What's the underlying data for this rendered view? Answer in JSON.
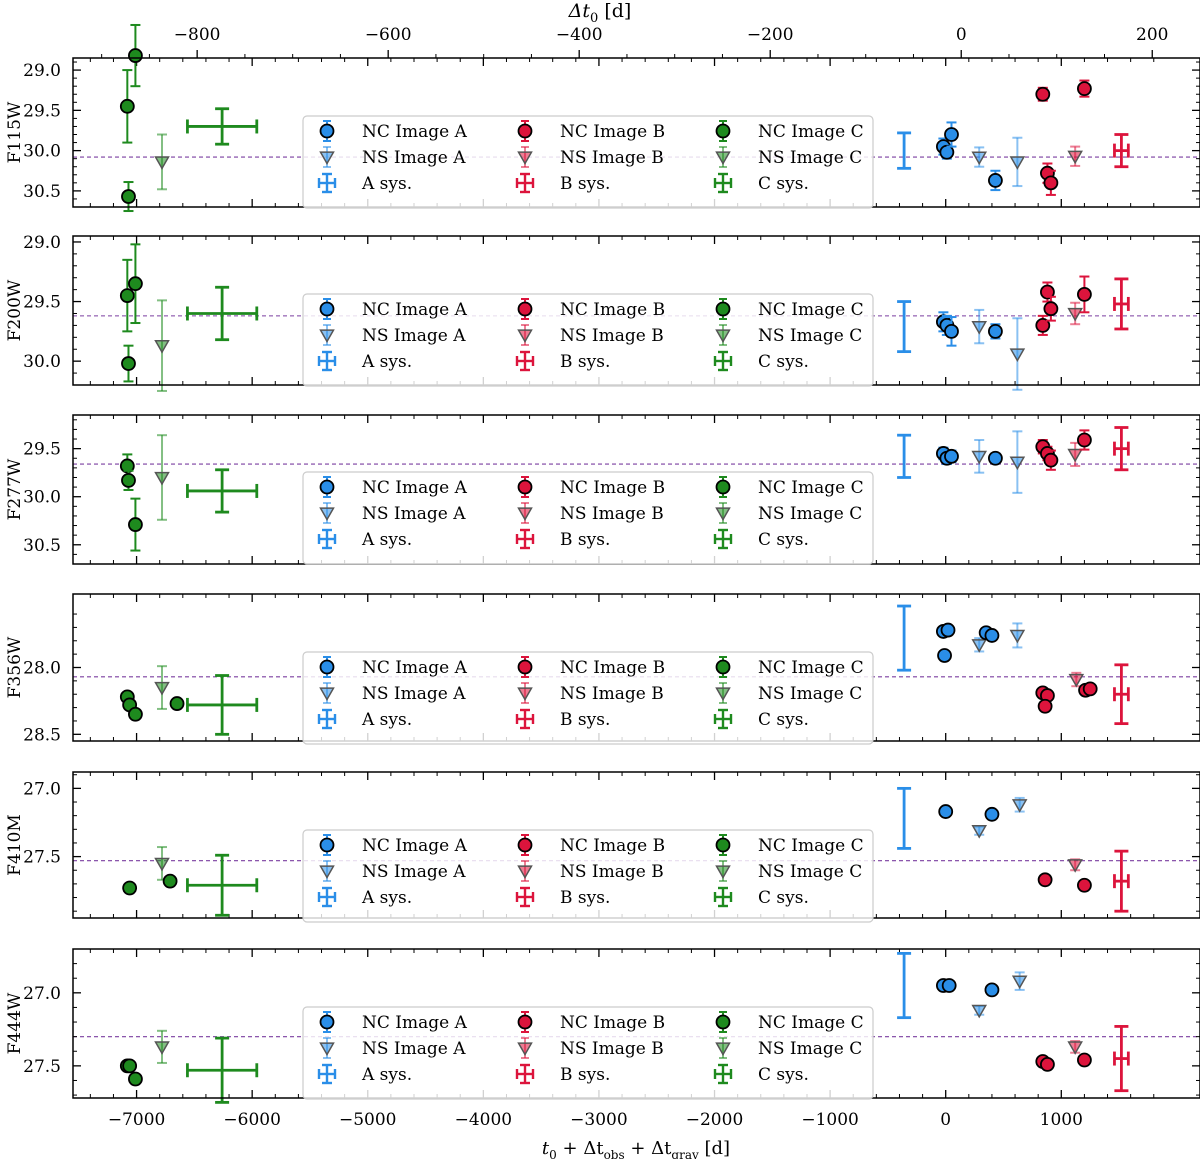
{
  "chart_data": {
    "type": "scatter",
    "title": "",
    "xlabel": "t0 + Δtobs + Δtgrav [d]",
    "xlabel_parts": {
      "main": "t",
      "sub0": "0",
      "plus1": " + Δt",
      "sub_obs": "obs",
      "plus2": " + Δt",
      "sub_grav": "grav",
      "unit": " [d]"
    },
    "top_xlabel": "Δt0 [d]",
    "top_xlabel_parts": {
      "main": "Δt",
      "sub0": "0",
      "unit": " [d]"
    },
    "xlim": [
      -7550,
      2200
    ],
    "x_ticks": [
      -7000,
      -6000,
      -5000,
      -4000,
      -3000,
      -2000,
      -1000,
      0,
      1000
    ],
    "x_tick_labels": [
      "−7000",
      "−6000",
      "−5000",
      "−4000",
      "−3000",
      "−2000",
      "−1000",
      "0",
      "1000"
    ],
    "top_xlim": [
      -930,
      250
    ],
    "top_ticks": [
      -800,
      -600,
      -400,
      -200,
      0,
      200
    ],
    "top_tick_labels": [
      "−800",
      "−600",
      "−400",
      "−200",
      "0",
      "200"
    ],
    "colors": {
      "A": "#2a8ee8",
      "B": "#dc143c",
      "C": "#1e8a1e",
      "refline": "#7b3fa0",
      "legend_border": "#cccccc"
    },
    "legend": {
      "entries": [
        {
          "key": "NC_A",
          "label": "NC Image A",
          "image": "A",
          "marker": "circle"
        },
        {
          "key": "NS_A",
          "label": "NS Image A",
          "image": "A",
          "marker": "triangle"
        },
        {
          "key": "SYS_A",
          "label": "A sys.",
          "image": "A",
          "marker": "sys"
        },
        {
          "key": "NC_B",
          "label": "NC Image B",
          "image": "B",
          "marker": "circle"
        },
        {
          "key": "NS_B",
          "label": "NS Image B",
          "image": "B",
          "marker": "triangle"
        },
        {
          "key": "SYS_B",
          "label": "B sys.",
          "image": "B",
          "marker": "sys"
        },
        {
          "key": "NC_C",
          "label": "NC Image C",
          "image": "C",
          "marker": "circle"
        },
        {
          "key": "NS_C",
          "label": "NS Image C",
          "image": "C",
          "marker": "triangle"
        },
        {
          "key": "SYS_C",
          "label": "C sys.",
          "image": "C",
          "marker": "sys"
        }
      ]
    },
    "panels": [
      {
        "ylabel": "F115W",
        "ylim": [
          30.7,
          28.85
        ],
        "yticks": [
          29.0,
          29.5,
          30.0,
          30.5
        ],
        "ytick_labels": [
          "29.0",
          "29.5",
          "30.0",
          "30.5"
        ],
        "refline": 30.08,
        "nc": [
          {
            "image": "C",
            "x": -7080,
            "y": 29.45,
            "err": 0.45
          },
          {
            "image": "C",
            "x": -7010,
            "y": 28.82,
            "err": 0.38
          },
          {
            "image": "C",
            "x": -7070,
            "y": 30.57,
            "err": 0.18
          },
          {
            "image": "A",
            "x": -20,
            "y": 29.95,
            "err": 0.1
          },
          {
            "image": "A",
            "x": 10,
            "y": 30.02,
            "err": 0.08
          },
          {
            "image": "A",
            "x": 50,
            "y": 29.8,
            "err": 0.15
          },
          {
            "image": "A",
            "x": 430,
            "y": 30.37,
            "err": 0.12
          },
          {
            "image": "B",
            "x": 840,
            "y": 29.3,
            "err": 0.08
          },
          {
            "image": "B",
            "x": 880,
            "y": 30.28,
            "err": 0.12
          },
          {
            "image": "B",
            "x": 910,
            "y": 30.4,
            "err": 0.15
          },
          {
            "image": "B",
            "x": 1200,
            "y": 29.23,
            "err": 0.1
          }
        ],
        "ns": [
          {
            "image": "C",
            "x": -6780,
            "y": 30.14,
            "err": 0.34
          },
          {
            "image": "A",
            "x": 290,
            "y": 30.08,
            "err": 0.12
          },
          {
            "image": "A",
            "x": 620,
            "y": 30.14,
            "err": 0.3
          },
          {
            "image": "B",
            "x": 1120,
            "y": 30.07,
            "err": 0.12
          }
        ],
        "sys": [
          {
            "image": "C",
            "x": -6260,
            "y": 29.7,
            "yerr": 0.22,
            "xerr": 300
          },
          {
            "image": "A",
            "x": -360,
            "y": 30.0,
            "yerr": 0.22,
            "xerr": 0
          },
          {
            "image": "B",
            "x": 1520,
            "y": 30.0,
            "yerr": 0.2,
            "xerr": 60
          }
        ]
      },
      {
        "ylabel": "F200W",
        "ylim": [
          30.2,
          28.95
        ],
        "yticks": [
          29.0,
          29.5,
          30.0
        ],
        "ytick_labels": [
          "29.0",
          "29.5",
          "30.0"
        ],
        "refline": 29.62,
        "nc": [
          {
            "image": "C",
            "x": -7080,
            "y": 29.45,
            "err": 0.3
          },
          {
            "image": "C",
            "x": -7010,
            "y": 29.35,
            "err": 0.33
          },
          {
            "image": "C",
            "x": -7070,
            "y": 30.02,
            "err": 0.15
          },
          {
            "image": "A",
            "x": -20,
            "y": 29.67,
            "err": 0.08
          },
          {
            "image": "A",
            "x": 10,
            "y": 29.7,
            "err": 0.08
          },
          {
            "image": "A",
            "x": 50,
            "y": 29.75,
            "err": 0.12
          },
          {
            "image": "A",
            "x": 430,
            "y": 29.75,
            "err": 0.06
          },
          {
            "image": "B",
            "x": 840,
            "y": 29.7,
            "err": 0.08
          },
          {
            "image": "B",
            "x": 880,
            "y": 29.42,
            "err": 0.08
          },
          {
            "image": "B",
            "x": 910,
            "y": 29.56,
            "err": 0.1
          },
          {
            "image": "B",
            "x": 1200,
            "y": 29.44,
            "err": 0.15
          }
        ],
        "ns": [
          {
            "image": "C",
            "x": -6780,
            "y": 29.87,
            "err": 0.38
          },
          {
            "image": "A",
            "x": 290,
            "y": 29.71,
            "err": 0.14
          },
          {
            "image": "A",
            "x": 620,
            "y": 29.94,
            "err": 0.3
          },
          {
            "image": "B",
            "x": 1120,
            "y": 29.6,
            "err": 0.09
          }
        ],
        "sys": [
          {
            "image": "C",
            "x": -6260,
            "y": 29.6,
            "yerr": 0.22,
            "xerr": 300
          },
          {
            "image": "A",
            "x": -360,
            "y": 29.71,
            "yerr": 0.21,
            "xerr": 0
          },
          {
            "image": "B",
            "x": 1520,
            "y": 29.52,
            "yerr": 0.21,
            "xerr": 60
          }
        ]
      },
      {
        "ylabel": "F277W",
        "ylim": [
          30.7,
          29.15
        ],
        "yticks": [
          29.5,
          30.0,
          30.5
        ],
        "ytick_labels": [
          "29.5",
          "30.0",
          "30.5"
        ],
        "refline": 29.66,
        "nc": [
          {
            "image": "C",
            "x": -7080,
            "y": 29.68,
            "err": 0.12
          },
          {
            "image": "C",
            "x": -7070,
            "y": 29.83,
            "err": 0.1
          },
          {
            "image": "C",
            "x": -7010,
            "y": 30.29,
            "err": 0.27
          },
          {
            "image": "A",
            "x": -20,
            "y": 29.55,
            "err": 0.06
          },
          {
            "image": "A",
            "x": 10,
            "y": 29.6,
            "err": 0.06
          },
          {
            "image": "A",
            "x": 50,
            "y": 29.58,
            "err": 0.06
          },
          {
            "image": "A",
            "x": 430,
            "y": 29.6,
            "err": 0.05
          },
          {
            "image": "B",
            "x": 840,
            "y": 29.48,
            "err": 0.07
          },
          {
            "image": "B",
            "x": 880,
            "y": 29.55,
            "err": 0.07
          },
          {
            "image": "B",
            "x": 910,
            "y": 29.62,
            "err": 0.1
          },
          {
            "image": "B",
            "x": 1200,
            "y": 29.41,
            "err": 0.1
          }
        ],
        "ns": [
          {
            "image": "C",
            "x": -6780,
            "y": 29.8,
            "err": 0.44
          },
          {
            "image": "A",
            "x": 290,
            "y": 29.58,
            "err": 0.17
          },
          {
            "image": "A",
            "x": 620,
            "y": 29.64,
            "err": 0.32
          },
          {
            "image": "B",
            "x": 1120,
            "y": 29.56,
            "err": 0.12
          }
        ],
        "sys": [
          {
            "image": "C",
            "x": -6260,
            "y": 29.94,
            "yerr": 0.22,
            "xerr": 300
          },
          {
            "image": "A",
            "x": -360,
            "y": 29.58,
            "yerr": 0.22,
            "xerr": 0
          },
          {
            "image": "B",
            "x": 1520,
            "y": 29.5,
            "yerr": 0.22,
            "xerr": 60
          }
        ]
      },
      {
        "ylabel": "F356W",
        "ylim": [
          28.55,
          27.45
        ],
        "yticks": [
          28.0,
          28.5
        ],
        "ytick_labels": [
          "28.0",
          "28.5"
        ],
        "refline": 28.07,
        "nc": [
          {
            "image": "C",
            "x": -7080,
            "y": 28.22,
            "err": 0.02
          },
          {
            "image": "C",
            "x": -7060,
            "y": 28.28,
            "err": 0.02
          },
          {
            "image": "C",
            "x": -7010,
            "y": 28.35,
            "err": 0.02
          },
          {
            "image": "C",
            "x": -6650,
            "y": 28.27,
            "err": 0.02
          },
          {
            "image": "A",
            "x": -20,
            "y": 27.73,
            "err": 0.02
          },
          {
            "image": "A",
            "x": 20,
            "y": 27.72,
            "err": 0.02
          },
          {
            "image": "A",
            "x": -10,
            "y": 27.91,
            "err": 0.02
          },
          {
            "image": "A",
            "x": 350,
            "y": 27.74,
            "err": 0.02
          },
          {
            "image": "A",
            "x": 400,
            "y": 27.76,
            "err": 0.02
          },
          {
            "image": "B",
            "x": 840,
            "y": 28.19,
            "err": 0.02
          },
          {
            "image": "B",
            "x": 880,
            "y": 28.21,
            "err": 0.02
          },
          {
            "image": "B",
            "x": 860,
            "y": 28.29,
            "err": 0.02
          },
          {
            "image": "B",
            "x": 1210,
            "y": 28.17,
            "err": 0.02
          },
          {
            "image": "B",
            "x": 1250,
            "y": 28.16,
            "err": 0.02
          }
        ],
        "ns": [
          {
            "image": "C",
            "x": -6780,
            "y": 28.15,
            "err": 0.16
          },
          {
            "image": "A",
            "x": 290,
            "y": 27.83,
            "err": 0.05
          },
          {
            "image": "A",
            "x": 620,
            "y": 27.76,
            "err": 0.09
          },
          {
            "image": "B",
            "x": 1130,
            "y": 28.09,
            "err": 0.05
          }
        ],
        "sys": [
          {
            "image": "C",
            "x": -6260,
            "y": 28.28,
            "yerr": 0.22,
            "xerr": 300
          },
          {
            "image": "A",
            "x": -360,
            "y": 27.78,
            "yerr": 0.24,
            "xerr": 0
          },
          {
            "image": "B",
            "x": 1520,
            "y": 28.2,
            "yerr": 0.22,
            "xerr": 60
          }
        ]
      },
      {
        "ylabel": "F410M",
        "ylim": [
          27.95,
          26.88
        ],
        "yticks": [
          27.0,
          27.5
        ],
        "ytick_labels": [
          "27.0",
          "27.5"
        ],
        "refline": 27.53,
        "nc": [
          {
            "image": "C",
            "x": -7060,
            "y": 27.73,
            "err": 0.02
          },
          {
            "image": "C",
            "x": -6710,
            "y": 27.68,
            "err": 0.02
          },
          {
            "image": "A",
            "x": 0,
            "y": 27.17,
            "err": 0.02
          },
          {
            "image": "A",
            "x": 400,
            "y": 27.19,
            "err": 0.02
          },
          {
            "image": "B",
            "x": 860,
            "y": 27.67,
            "err": 0.02
          },
          {
            "image": "B",
            "x": 1200,
            "y": 27.71,
            "err": 0.02
          }
        ],
        "ns": [
          {
            "image": "C",
            "x": -6780,
            "y": 27.55,
            "err": 0.12
          },
          {
            "image": "A",
            "x": 290,
            "y": 27.31,
            "err": 0.03
          },
          {
            "image": "A",
            "x": 640,
            "y": 27.12,
            "err": 0.05
          },
          {
            "image": "B",
            "x": 1120,
            "y": 27.56,
            "err": 0.04
          }
        ],
        "sys": [
          {
            "image": "C",
            "x": -6260,
            "y": 27.71,
            "yerr": 0.22,
            "xerr": 300
          },
          {
            "image": "A",
            "x": -360,
            "y": 27.22,
            "yerr": 0.22,
            "xerr": 0
          },
          {
            "image": "B",
            "x": 1520,
            "y": 27.68,
            "yerr": 0.22,
            "xerr": 60
          }
        ]
      },
      {
        "ylabel": "F444W",
        "ylim": [
          27.72,
          26.7
        ],
        "yticks": [
          27.0,
          27.5
        ],
        "ytick_labels": [
          "27.0",
          "27.5"
        ],
        "refline": 27.3,
        "nc": [
          {
            "image": "C",
            "x": -7080,
            "y": 27.5,
            "err": 0.02
          },
          {
            "image": "C",
            "x": -7060,
            "y": 27.5,
            "err": 0.02
          },
          {
            "image": "C",
            "x": -7010,
            "y": 27.59,
            "err": 0.02
          },
          {
            "image": "A",
            "x": -20,
            "y": 26.95,
            "err": 0.02
          },
          {
            "image": "A",
            "x": 30,
            "y": 26.95,
            "err": 0.02
          },
          {
            "image": "A",
            "x": 400,
            "y": 26.98,
            "err": 0.02
          },
          {
            "image": "B",
            "x": 840,
            "y": 27.47,
            "err": 0.02
          },
          {
            "image": "B",
            "x": 880,
            "y": 27.49,
            "err": 0.02
          },
          {
            "image": "B",
            "x": 1200,
            "y": 27.46,
            "err": 0.02
          }
        ],
        "ns": [
          {
            "image": "C",
            "x": -6780,
            "y": 27.37,
            "err": 0.11
          },
          {
            "image": "A",
            "x": 290,
            "y": 27.12,
            "err": 0.03
          },
          {
            "image": "A",
            "x": 640,
            "y": 26.92,
            "err": 0.06
          },
          {
            "image": "B",
            "x": 1120,
            "y": 27.37,
            "err": 0.04
          }
        ],
        "sys": [
          {
            "image": "C",
            "x": -6260,
            "y": 27.53,
            "yerr": 0.22,
            "xerr": 300
          },
          {
            "image": "A",
            "x": -360,
            "y": 26.95,
            "yerr": 0.22,
            "xerr": 0
          },
          {
            "image": "B",
            "x": 1520,
            "y": 27.45,
            "yerr": 0.22,
            "xerr": 60
          }
        ]
      }
    ]
  }
}
